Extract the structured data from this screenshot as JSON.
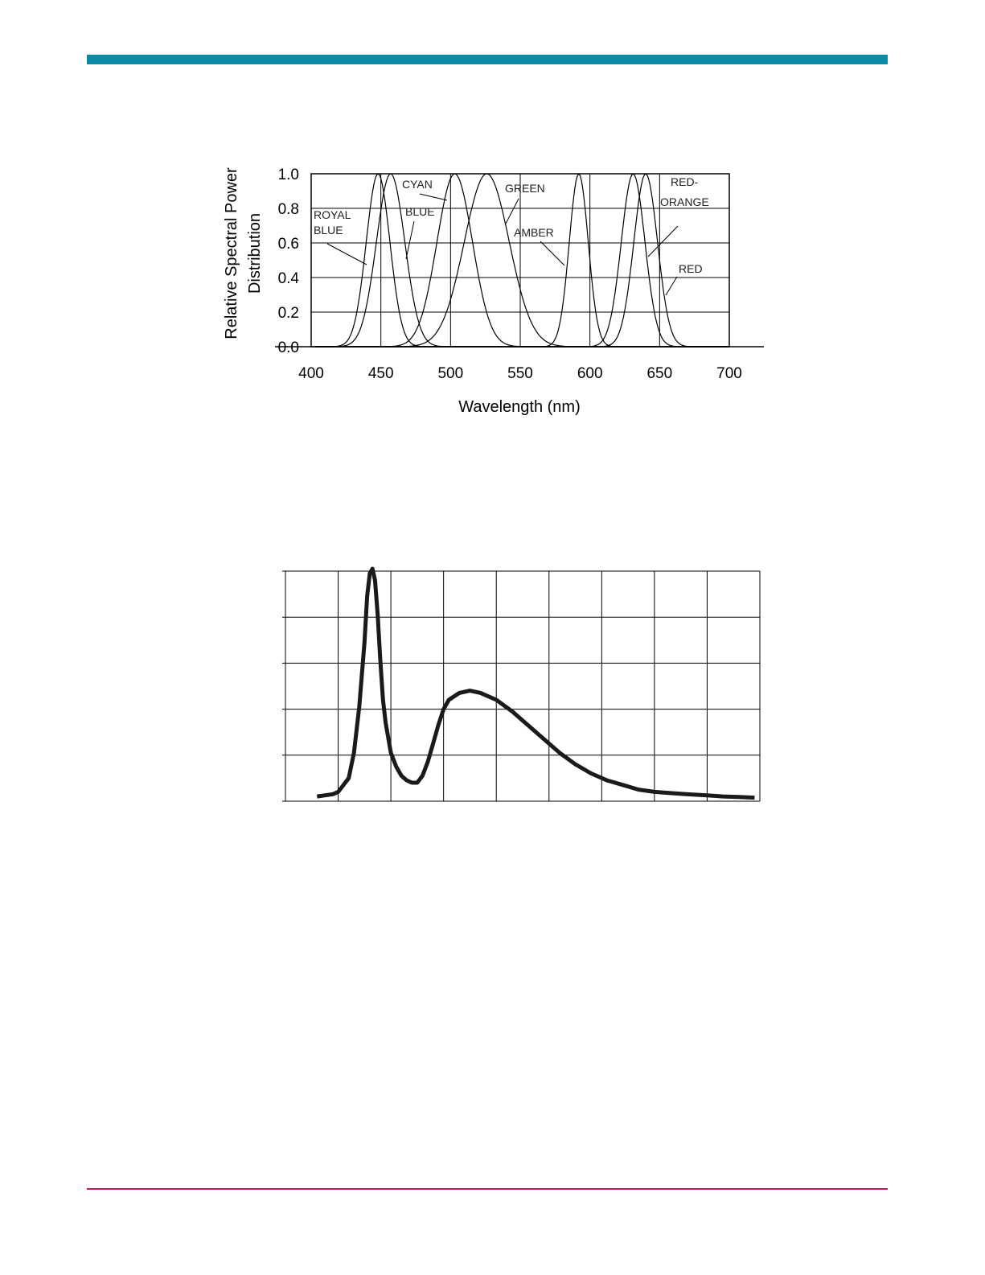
{
  "colors": {
    "top_bar": "#0a8ba2",
    "bottom_rule": "#c2185b",
    "ink": "#000000"
  },
  "chart_data": [
    {
      "type": "line",
      "title": "",
      "xlabel": "Wavelength (nm)",
      "ylabel": "Relative Spectral Power Distribution",
      "xlim": [
        400,
        700
      ],
      "ylim": [
        0,
        1.0
      ],
      "xticks": [
        "400",
        "450",
        "500",
        "550",
        "600",
        "650",
        "700"
      ],
      "yticks": [
        "0.0",
        "0.2",
        "0.4",
        "0.6",
        "0.8",
        "1.0"
      ],
      "grid": true,
      "series": [
        {
          "name": "ROYAL BLUE",
          "peak": 448,
          "fwhm": 20
        },
        {
          "name": "BLUE",
          "peak": 457,
          "fwhm": 24
        },
        {
          "name": "CYAN",
          "peak": 503,
          "fwhm": 30
        },
        {
          "name": "GREEN",
          "peak": 526,
          "fwhm": 38
        },
        {
          "name": "AMBER",
          "peak": 592,
          "fwhm": 16
        },
        {
          "name": "RED-ORANGE",
          "peak": 631,
          "fwhm": 20
        },
        {
          "name": "RED",
          "peak": 640,
          "fwhm": 20
        }
      ],
      "labels": {
        "royal_blue": [
          "ROYAL",
          "BLUE"
        ],
        "blue": "BLUE",
        "cyan": "CYAN",
        "green": "GREEN",
        "amber": "AMBER",
        "red_orange": [
          "RED-",
          "ORANGE"
        ],
        "red": "RED"
      }
    },
    {
      "type": "line",
      "title": "",
      "grid": true,
      "x_gridlines": 9,
      "y_gridlines": 5,
      "xlim": [
        0,
        9
      ],
      "ylim": [
        0,
        1.0
      ],
      "series": [
        {
          "x": [
            0.6,
            0.9,
            1.0,
            1.2,
            1.3,
            1.4,
            1.5,
            1.55,
            1.6,
            1.65,
            1.7,
            1.75,
            1.8,
            1.85,
            1.9,
            2.0,
            2.1,
            2.2,
            2.3,
            2.4,
            2.5,
            2.6,
            2.7,
            2.8,
            2.9,
            3.0,
            3.1,
            3.3,
            3.5,
            3.7,
            4.0,
            4.3,
            4.6,
            4.9,
            5.2,
            5.5,
            5.8,
            6.1,
            6.4,
            6.7,
            7.0,
            7.3,
            7.6,
            8.0,
            8.3,
            8.6,
            8.9
          ],
          "y": [
            0.01,
            0.02,
            0.03,
            0.09,
            0.2,
            0.4,
            0.68,
            0.88,
            0.98,
            1.0,
            0.95,
            0.8,
            0.6,
            0.43,
            0.33,
            0.2,
            0.14,
            0.1,
            0.08,
            0.07,
            0.07,
            0.1,
            0.16,
            0.24,
            0.32,
            0.39,
            0.43,
            0.46,
            0.47,
            0.46,
            0.43,
            0.38,
            0.32,
            0.26,
            0.2,
            0.15,
            0.11,
            0.08,
            0.06,
            0.04,
            0.03,
            0.025,
            0.02,
            0.015,
            0.01,
            0.008,
            0.005
          ]
        }
      ]
    }
  ]
}
